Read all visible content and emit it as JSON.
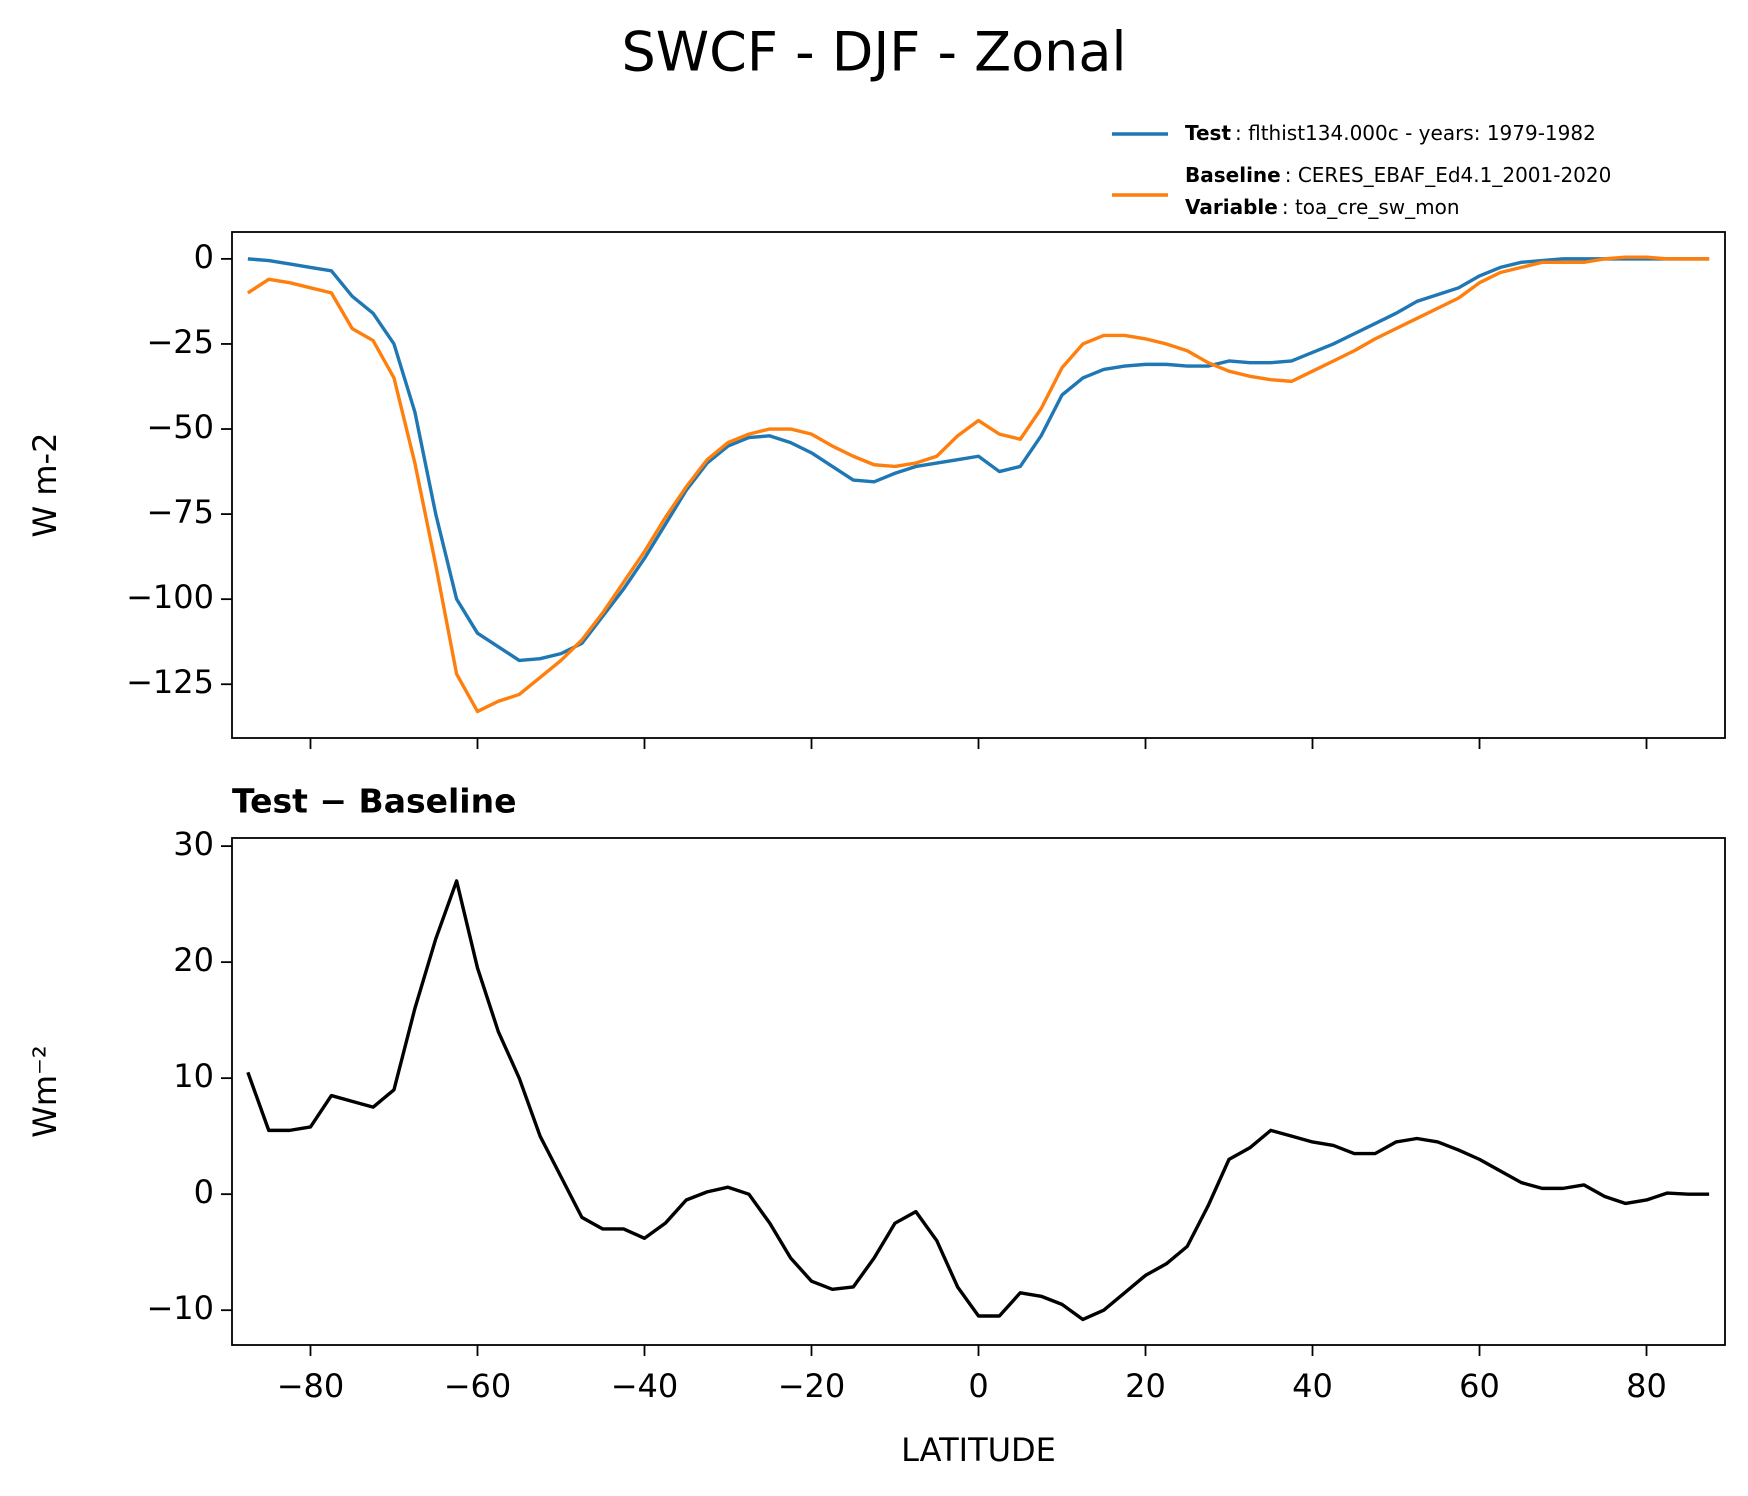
{
  "title": "SWCF - DJF - Zonal",
  "chart_data": [
    {
      "type": "line",
      "ylabel": "W m-2",
      "x": [
        -87.5,
        -85,
        -82.5,
        -80,
        -77.5,
        -75,
        -72.5,
        -70,
        -67.5,
        -65,
        -62.5,
        -60,
        -57.5,
        -55,
        -52.5,
        -50,
        -47.5,
        -45,
        -42.5,
        -40,
        -37.5,
        -35,
        -32.5,
        -30,
        -27.5,
        -25,
        -22.5,
        -20,
        -17.5,
        -15,
        -12.5,
        -10,
        -7.5,
        -5,
        -2.5,
        0,
        2.5,
        5,
        7.5,
        10,
        12.5,
        15,
        17.5,
        20,
        22.5,
        25,
        27.5,
        30,
        32.5,
        35,
        37.5,
        40,
        42.5,
        45,
        47.5,
        50,
        52.5,
        55,
        57.5,
        60,
        62.5,
        65,
        67.5,
        70,
        72.5,
        75,
        77.5,
        80,
        82.5,
        85,
        87.5
      ],
      "series": [
        {
          "name": "Test",
          "description": ": flthist134.000c - years: 1979-1982",
          "color": "#1f77b4",
          "values": [
            0,
            -0.5,
            -1.5,
            -2.5,
            -3.5,
            -11,
            -16,
            -25,
            -45,
            -75,
            -100,
            -110,
            -114,
            -118,
            -117.5,
            -116,
            -113,
            -105,
            -97,
            -88,
            -78,
            -68,
            -60,
            -55,
            -52.5,
            -52,
            -54,
            -57,
            -61,
            -65,
            -65.5,
            -63,
            -61,
            -60,
            -59,
            -58,
            -62.5,
            -61,
            -52,
            -40,
            -35,
            -32.5,
            -31.5,
            -31,
            -31,
            -31.5,
            -31.5,
            -30,
            -30.5,
            -30.5,
            -30,
            -27.5,
            -25,
            -22,
            -19,
            -16,
            -12.5,
            -10.5,
            -8.5,
            -5,
            -2.5,
            -1,
            -0.5,
            0,
            0,
            0,
            0,
            0,
            0,
            0,
            0
          ]
        },
        {
          "name": "Baseline",
          "description": ": CERES_EBAF_Ed4.1_2001-2020",
          "color": "#ff7f0e",
          "values": [
            -10,
            -6,
            -7,
            -8.5,
            -10,
            -20.5,
            -24,
            -35,
            -60,
            -90,
            -122,
            -133,
            -130,
            -128,
            -123,
            -118,
            -112,
            -104,
            -95,
            -86,
            -76,
            -67,
            -59,
            -54,
            -51.5,
            -50,
            -50,
            -51.5,
            -55,
            -58,
            -60.5,
            -61,
            -60,
            -58,
            -52,
            -47.5,
            -51.5,
            -53,
            -44,
            -32,
            -25,
            -22.5,
            -22.5,
            -23.5,
            -25,
            -27,
            -30.5,
            -33,
            -34.5,
            -35.5,
            -36,
            -33,
            -30,
            -27,
            -23.5,
            -20.5,
            -17.5,
            -14.5,
            -11.5,
            -7,
            -4,
            -2.5,
            -1,
            -1,
            -1,
            0,
            0.5,
            0.5,
            0,
            0,
            0
          ]
        }
      ],
      "legend_note": {
        "label": "Variable",
        "text": ": toa_cre_sw_mon"
      },
      "xlim": [
        -89.4,
        89.4
      ],
      "xticks": [
        -80,
        -60,
        -40,
        -20,
        0,
        20,
        40,
        60,
        80
      ],
      "xtick_labels": false,
      "ylim": [
        -140.8,
        7.9
      ],
      "yticks": [
        {
          "value": -125,
          "label": "−125"
        },
        {
          "value": -100,
          "label": "−100"
        },
        {
          "value": -75,
          "label": "−75"
        },
        {
          "value": -50,
          "label": "−50"
        },
        {
          "value": -25,
          "label": "−25"
        },
        0
      ]
    },
    {
      "type": "line",
      "title": "Test − Baseline",
      "ylabel": "Wm⁻²",
      "xlabel": "LATITUDE",
      "x": [
        -87.5,
        -85,
        -82.5,
        -80,
        -77.5,
        -75,
        -72.5,
        -70,
        -67.5,
        -65,
        -62.5,
        -60,
        -57.5,
        -55,
        -52.5,
        -50,
        -47.5,
        -45,
        -42.5,
        -40,
        -37.5,
        -35,
        -32.5,
        -30,
        -27.5,
        -25,
        -22.5,
        -20,
        -17.5,
        -15,
        -12.5,
        -10,
        -7.5,
        -5,
        -2.5,
        0,
        2.5,
        5,
        7.5,
        10,
        12.5,
        15,
        17.5,
        20,
        22.5,
        25,
        27.5,
        30,
        32.5,
        35,
        37.5,
        40,
        42.5,
        45,
        47.5,
        50,
        52.5,
        55,
        57.5,
        60,
        62.5,
        65,
        67.5,
        70,
        72.5,
        75,
        77.5,
        80,
        82.5,
        85,
        87.5
      ],
      "series": [
        {
          "color": "#000000",
          "values": [
            10.5,
            5.5,
            5.5,
            5.8,
            8.5,
            8,
            7.5,
            9,
            16,
            22,
            27,
            19.5,
            14,
            10,
            5,
            1.5,
            -2,
            -3,
            -3,
            -3.8,
            -2.5,
            -0.5,
            0.2,
            0.6,
            0,
            -2.5,
            -5.5,
            -7.5,
            -8.2,
            -8,
            -5.5,
            -2.5,
            -1.5,
            -4,
            -8,
            -10.5,
            -10.5,
            -8.5,
            -8.8,
            -9.5,
            -10.8,
            -10,
            -8.5,
            -7,
            -6,
            -4.5,
            -1,
            3,
            4,
            5.5,
            5,
            4.5,
            4.2,
            3.5,
            3.5,
            4.5,
            4.8,
            4.5,
            3.8,
            3,
            2,
            1,
            0.5,
            0.5,
            0.8,
            -0.2,
            -0.8,
            -0.5,
            0.1,
            0,
            0
          ]
        }
      ],
      "xlim": [
        -89.4,
        89.4
      ],
      "xticks": [
        {
          "value": -80,
          "label": "−80"
        },
        {
          "value": -60,
          "label": "−60"
        },
        {
          "value": -40,
          "label": "−40"
        },
        {
          "value": -20,
          "label": "−20"
        },
        0,
        20,
        40,
        60,
        80
      ],
      "ylim": [
        -13,
        30.7
      ],
      "yticks": [
        {
          "value": -10,
          "label": "−10"
        },
        0,
        10,
        20,
        30
      ]
    }
  ]
}
